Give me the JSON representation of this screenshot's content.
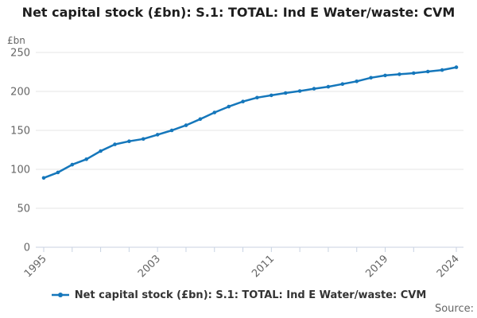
{
  "title": "Net capital stock (£bn): S.1: TOTAL: Ind E Water/waste: CVM",
  "legend": {
    "label": "Net capital stock (£bn): S.1: TOTAL: Ind E Water/waste: CVM"
  },
  "source": {
    "label": "Source:"
  },
  "chart_data": {
    "type": "line",
    "title": "Net capital stock (£bn): S.1: TOTAL: Ind E Water/waste: CVM",
    "ylabel": "£bn",
    "xlabel": "",
    "x_range": [
      1995,
      2024
    ],
    "ylim": [
      0,
      250
    ],
    "yticks": [
      0,
      50,
      100,
      150,
      200,
      250
    ],
    "xticks": [
      1995,
      1997,
      1999,
      2001,
      2003,
      2005,
      2007,
      2009,
      2011,
      2013,
      2015,
      2017,
      2019,
      2021,
      2024
    ],
    "xtick_labels": [
      1995,
      2003,
      2011,
      2019,
      2024
    ],
    "grid_on": true,
    "legend_position": "bottom",
    "x": [
      1995,
      1996,
      1997,
      1998,
      1999,
      2000,
      2001,
      2002,
      2003,
      2004,
      2005,
      2006,
      2007,
      2008,
      2009,
      2010,
      2011,
      2012,
      2013,
      2014,
      2015,
      2016,
      2017,
      2018,
      2019,
      2020,
      2021,
      2022,
      2023,
      2024
    ],
    "series": [
      {
        "name": "Net capital stock (£bn): S.1: TOTAL: Ind E Water/waste: CVM",
        "values": [
          89,
          96,
          106,
          113,
          123.5,
          132,
          136,
          139,
          144.5,
          150,
          156.5,
          164.5,
          173,
          180.5,
          187,
          192,
          195,
          198,
          200.5,
          203.5,
          206,
          209.5,
          213,
          217.5,
          220.5,
          222,
          223.5,
          225.5,
          227.5,
          231
        ]
      }
    ],
    "line_color": "#1577bb",
    "grid_color": "#e6e6e6",
    "axis_color": "#c8d2e2",
    "tick_label_color": "#666666"
  }
}
